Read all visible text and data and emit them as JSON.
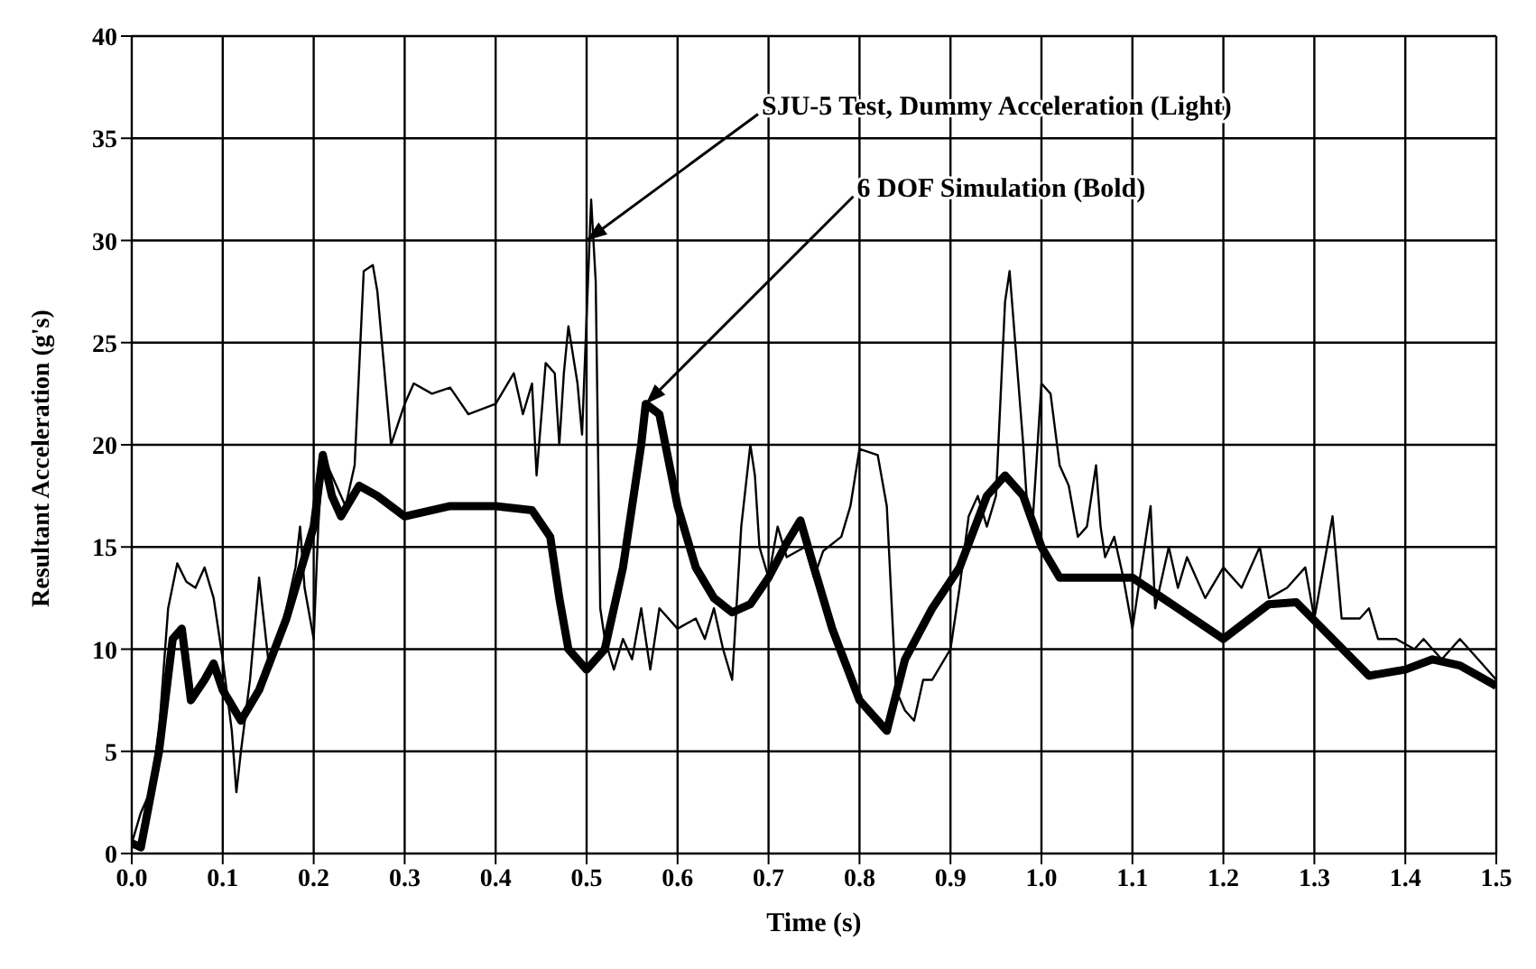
{
  "chart_data": {
    "type": "line",
    "xlabel": "Time (s)",
    "ylabel": "Resultant Acceleration (g's)",
    "xlim": [
      0,
      1.5
    ],
    "ylim": [
      0,
      40
    ],
    "xticks": [
      {
        "value": 0,
        "label": "0.0"
      },
      {
        "value": 0.1,
        "label": "0.1"
      },
      {
        "value": 0.2,
        "label": "0.2"
      },
      {
        "value": 0.3,
        "label": "0.3"
      },
      {
        "value": 0.4,
        "label": "0.4"
      },
      {
        "value": 0.5,
        "label": "0.5"
      },
      {
        "value": 0.6,
        "label": "0.6"
      },
      {
        "value": 0.7,
        "label": "0.7"
      },
      {
        "value": 0.8,
        "label": "0.8"
      },
      {
        "value": 0.9,
        "label": "0.9"
      },
      {
        "value": 1,
        "label": "1.0"
      },
      {
        "value": 1.1,
        "label": "1.1"
      },
      {
        "value": 1.2,
        "label": "1.2"
      },
      {
        "value": 1.3,
        "label": "1.3"
      },
      {
        "value": 1.4,
        "label": "1.4"
      },
      {
        "value": 1.5,
        "label": "1.5"
      }
    ],
    "yticks": [
      0,
      5,
      10,
      15,
      20,
      25,
      30,
      35,
      40
    ],
    "grid": true,
    "marker": "none",
    "line_style": "solid",
    "series": [
      {
        "color": "#000000",
        "x": [
          0,
          0.01,
          0.02,
          0.03,
          0.04,
          0.05,
          0.06,
          0.07,
          0.08,
          0.09,
          0.1,
          0.11,
          0.115,
          0.12,
          0.13,
          0.14,
          0.15,
          0.16,
          0.17,
          0.18,
          0.185,
          0.19,
          0.2,
          0.205,
          0.21,
          0.22,
          0.235,
          0.245,
          0.255,
          0.265,
          0.27,
          0.285,
          0.3,
          0.31,
          0.33,
          0.35,
          0.37,
          0.4,
          0.42,
          0.43,
          0.44,
          0.445,
          0.455,
          0.465,
          0.47,
          0.475,
          0.48,
          0.49,
          0.495,
          0.505,
          0.51,
          0.515,
          0.52,
          0.53,
          0.54,
          0.55,
          0.56,
          0.57,
          0.58,
          0.6,
          0.62,
          0.63,
          0.64,
          0.65,
          0.66,
          0.67,
          0.68,
          0.685,
          0.69,
          0.7,
          0.71,
          0.72,
          0.74,
          0.75,
          0.76,
          0.78,
          0.79,
          0.8,
          0.82,
          0.83,
          0.84,
          0.85,
          0.86,
          0.87,
          0.88,
          0.9,
          0.91,
          0.92,
          0.93,
          0.94,
          0.95,
          0.96,
          0.965,
          0.98,
          0.985,
          0.99,
          1,
          1.01,
          1.02,
          1.03,
          1.04,
          1.05,
          1.06,
          1.065,
          1.07,
          1.08,
          1.09,
          1.1,
          1.11,
          1.12,
          1.125,
          1.14,
          1.15,
          1.16,
          1.18,
          1.2,
          1.22,
          1.24,
          1.25,
          1.27,
          1.29,
          1.3,
          1.32,
          1.33,
          1.35,
          1.36,
          1.37,
          1.39,
          1.41,
          1.42,
          1.44,
          1.46,
          1.48,
          1.5
        ],
        "values": [
          0.5,
          2,
          3,
          6,
          12,
          14.2,
          13.3,
          13,
          14,
          12.5,
          9.5,
          6,
          3,
          5,
          8.5,
          13.5,
          9.5,
          10,
          12,
          14,
          16,
          13,
          10.5,
          16,
          19.5,
          18.5,
          17,
          19,
          28.5,
          28.8,
          27.5,
          20,
          22,
          23,
          22.5,
          22.8,
          21.5,
          22,
          23.5,
          21.5,
          23,
          18.5,
          24,
          23.5,
          20,
          23.5,
          25.8,
          23,
          20.5,
          32,
          28,
          12,
          10.5,
          9,
          10.5,
          9.5,
          12,
          9,
          12,
          11,
          11.5,
          10.5,
          12,
          10,
          8.5,
          16,
          20,
          18.5,
          15,
          13.5,
          16,
          14.5,
          15,
          13.5,
          14.8,
          15.5,
          17,
          19.8,
          19.5,
          17,
          8,
          7,
          6.5,
          8.5,
          8.5,
          10,
          13,
          16.5,
          17.5,
          16,
          17.5,
          27,
          28.5,
          20,
          16.5,
          16,
          23,
          22.5,
          19,
          18,
          15.5,
          16,
          19,
          16,
          14.5,
          15.5,
          13.5,
          11,
          14,
          17,
          12,
          15,
          13,
          14.5,
          12.5,
          14,
          13,
          15,
          12.5,
          13,
          14,
          11.5,
          16.5,
          11.5,
          11.5,
          12,
          10.5,
          10.5,
          10,
          10.5,
          9.5,
          10.5,
          9.5,
          8.5
        ]
      },
      {
        "color": "#000000",
        "x": [
          0,
          0.01,
          0.03,
          0.045,
          0.055,
          0.065,
          0.08,
          0.09,
          0.1,
          0.12,
          0.14,
          0.17,
          0.2,
          0.21,
          0.22,
          0.23,
          0.25,
          0.27,
          0.3,
          0.35,
          0.4,
          0.44,
          0.46,
          0.47,
          0.48,
          0.5,
          0.52,
          0.54,
          0.56,
          0.565,
          0.58,
          0.6,
          0.62,
          0.64,
          0.66,
          0.68,
          0.7,
          0.72,
          0.735,
          0.75,
          0.77,
          0.8,
          0.83,
          0.85,
          0.88,
          0.91,
          0.94,
          0.96,
          0.98,
          1,
          1.02,
          1.05,
          1.1,
          1.15,
          1.2,
          1.25,
          1.28,
          1.32,
          1.36,
          1.4,
          1.43,
          1.46,
          1.5
        ],
        "values": [
          0.5,
          0.3,
          5,
          10.5,
          11,
          7.5,
          8.5,
          9.3,
          8,
          6.5,
          8,
          11.5,
          16,
          19.5,
          17.5,
          16.5,
          18,
          17.5,
          16.5,
          17,
          17,
          16.8,
          15.5,
          12.5,
          10,
          9,
          10,
          14,
          20,
          22,
          21.5,
          17,
          14,
          12.5,
          11.8,
          12.2,
          13.5,
          15.2,
          16.3,
          14,
          11,
          7.5,
          6,
          9.5,
          12,
          14,
          17.5,
          18.5,
          17.5,
          15,
          13.5,
          13.5,
          13.5,
          12,
          10.5,
          12.2,
          12.3,
          10.5,
          8.7,
          9,
          9.5,
          9.2,
          8.2
        ]
      }
    ],
    "annotations": [
      {
        "text": "SJU-5 Test,  Dummy Acceleration (Light)",
        "x": 0.5,
        "y": 30
      },
      {
        "text": "6 DOF Simulation (Bold)",
        "x": 0.565,
        "y": 22
      }
    ]
  }
}
